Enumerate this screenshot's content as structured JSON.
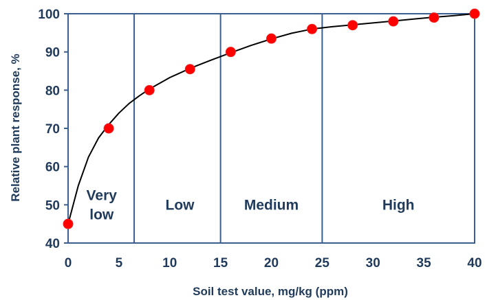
{
  "chart_data": {
    "type": "scatter",
    "title": "",
    "xlabel": "Soil test value, mg/kg (ppm)",
    "ylabel": "Relative plant response, %",
    "xlim": [
      0,
      40
    ],
    "ylim": [
      40,
      100
    ],
    "x_ticks": [
      0,
      5,
      10,
      15,
      20,
      25,
      30,
      35,
      40
    ],
    "y_ticks": [
      40,
      50,
      60,
      70,
      80,
      90,
      100
    ],
    "grid": false,
    "legend": "none",
    "series": [
      {
        "x": [
          0,
          4,
          8,
          12,
          16,
          20,
          24,
          28,
          32,
          36,
          40
        ],
        "values": [
          45,
          70,
          80,
          85.5,
          90,
          93.5,
          96,
          97,
          98,
          99,
          100
        ],
        "marker_color": "#ff0000"
      }
    ],
    "fitted_curve": {
      "x": [
        0,
        1,
        2,
        3,
        4,
        5,
        6,
        7,
        8,
        10,
        12,
        14,
        16,
        18,
        20,
        22,
        24,
        26,
        28,
        30,
        32,
        34,
        36,
        38,
        40
      ],
      "values": [
        45,
        55,
        62.5,
        67.5,
        71,
        74,
        76.5,
        78.5,
        80.3,
        83.3,
        85.7,
        87.8,
        89.8,
        91.7,
        93.4,
        94.9,
        96,
        96.6,
        97.1,
        97.6,
        98.1,
        98.6,
        99.1,
        99.5,
        100
      ],
      "color": "#000000"
    },
    "zones": [
      {
        "label_lines": [
          "Very",
          "low"
        ],
        "from": 0,
        "to": 6.5,
        "label_x": 3.3,
        "label_y": [
          52.5,
          47.5
        ]
      },
      {
        "label_lines": [
          "Low"
        ],
        "from": 6.5,
        "to": 15,
        "label_x": 11,
        "label_y": [
          50
        ]
      },
      {
        "label_lines": [
          "Medium"
        ],
        "from": 15,
        "to": 25,
        "label_x": 20,
        "label_y": [
          50
        ]
      },
      {
        "label_lines": [
          "High"
        ],
        "from": 25,
        "to": 40,
        "label_x": 32.5,
        "label_y": [
          50
        ]
      }
    ],
    "zone_line_color": "#3a5f8f",
    "text_color": "#1f3a5a"
  }
}
